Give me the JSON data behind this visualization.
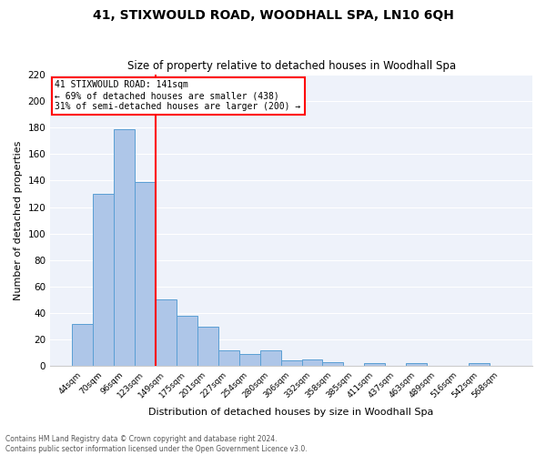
{
  "title": "41, STIXWOULD ROAD, WOODHALL SPA, LN10 6QH",
  "subtitle": "Size of property relative to detached houses in Woodhall Spa",
  "xlabel": "Distribution of detached houses by size in Woodhall Spa",
  "ylabel": "Number of detached properties",
  "bar_color": "#aec6e8",
  "bar_edge_color": "#5a9fd4",
  "background_color": "#eef2fa",
  "categories": [
    "44sqm",
    "70sqm",
    "96sqm",
    "123sqm",
    "149sqm",
    "175sqm",
    "201sqm",
    "227sqm",
    "254sqm",
    "280sqm",
    "306sqm",
    "332sqm",
    "358sqm",
    "385sqm",
    "411sqm",
    "437sqm",
    "463sqm",
    "489sqm",
    "516sqm",
    "542sqm",
    "568sqm"
  ],
  "values": [
    32,
    130,
    179,
    139,
    50,
    38,
    30,
    12,
    9,
    12,
    4,
    5,
    3,
    0,
    2,
    0,
    2,
    0,
    0,
    2,
    0
  ],
  "red_line_index": 4,
  "ylim": [
    0,
    220
  ],
  "yticks": [
    0,
    20,
    40,
    60,
    80,
    100,
    120,
    140,
    160,
    180,
    200,
    220
  ],
  "annotation_line1": "41 STIXWOULD ROAD: 141sqm",
  "annotation_line2": "← 69% of detached houses are smaller (438)",
  "annotation_line3": "31% of semi-detached houses are larger (200) →",
  "footer1": "Contains HM Land Registry data © Crown copyright and database right 2024.",
  "footer2": "Contains public sector information licensed under the Open Government Licence v3.0."
}
